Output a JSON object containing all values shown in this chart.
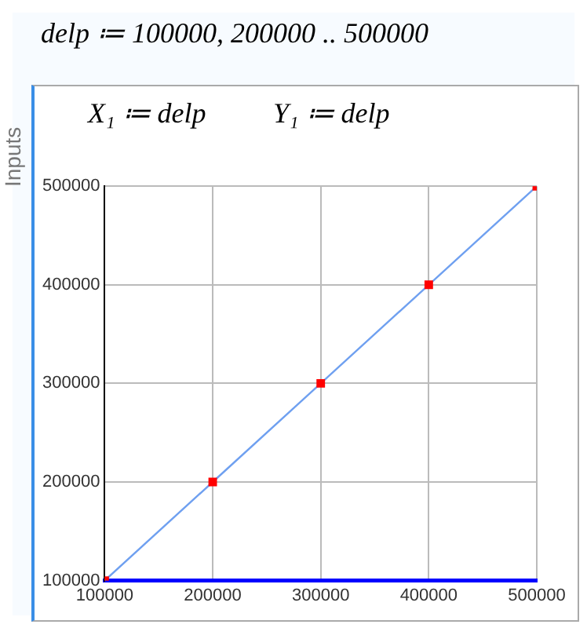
{
  "chart_data": {
    "type": "line",
    "annotations": [
      "delp ≔ 100000, 200000 .. 500000",
      "Inputs",
      "X₁ ≔ delp",
      "Y₁ ≔ delp"
    ],
    "x": [
      100000,
      200000,
      300000,
      400000,
      500000
    ],
    "series": [
      {
        "color": "#6fa0f0",
        "colors": [
          "#ff0000",
          "#ff0000",
          "#ff0000",
          "#ff0000",
          "#ff0000"
        ],
        "values": [
          100000,
          200000,
          300000,
          400000,
          500000
        ]
      }
    ],
    "xlim": [
      100000,
      500000
    ],
    "ylim": [
      100000,
      500000
    ],
    "xticks": [
      100000,
      200000,
      300000,
      400000,
      500000
    ],
    "yticks": [
      100000,
      200000,
      300000,
      400000,
      500000
    ],
    "grid": true,
    "marker": "square",
    "line_style": "solid"
  }
}
